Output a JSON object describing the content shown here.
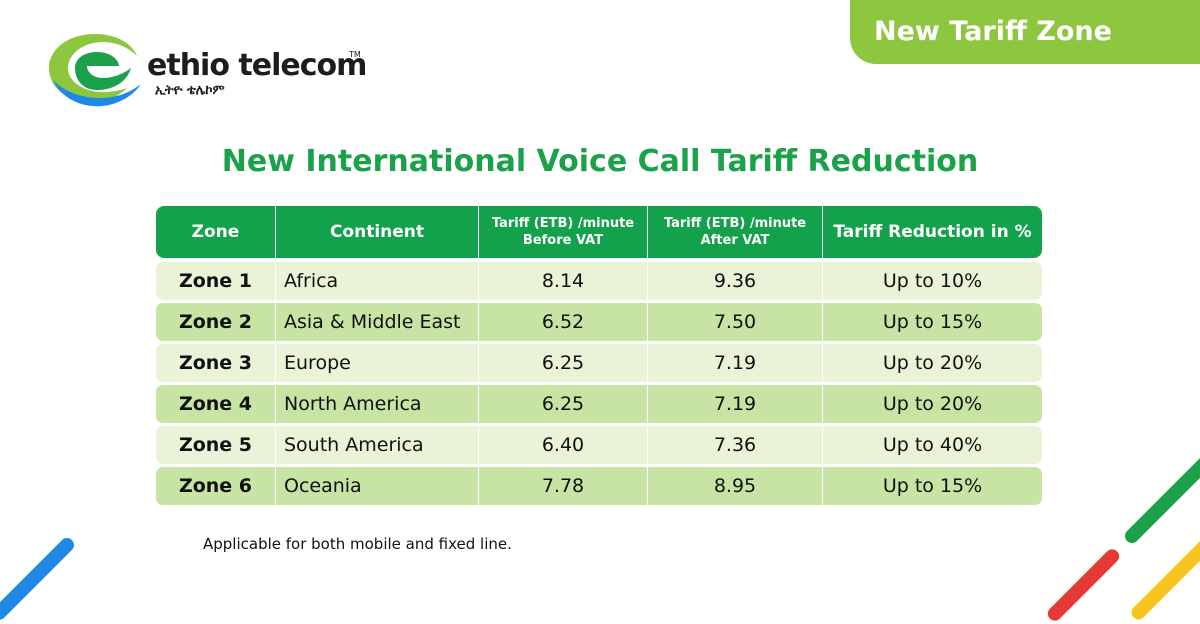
{
  "brand": {
    "name": "ethio telecom",
    "trademark": "TM",
    "name_amharic": "ኢትዮ ቴሌኮም",
    "colors": {
      "green": "#1aa14a",
      "light_green": "#8dc63f",
      "blue": "#1e88e5",
      "yellow": "#f7c51e",
      "red": "#e53935"
    }
  },
  "badge": {
    "label": "New Tariff Zone"
  },
  "title": "New International Voice Call Tariff Reduction",
  "table": {
    "headers": {
      "zone": "Zone",
      "continent": "Continent",
      "before_vat_line1": "Tariff (ETB) /minute",
      "before_vat_line2": "Before VAT",
      "after_vat_line1": "Tariff (ETB) /minute",
      "after_vat_line2": "After VAT",
      "reduction": "Tariff Reduction in %"
    },
    "rows": [
      {
        "zone": "Zone 1",
        "continent": "Africa",
        "before_vat": "8.14",
        "after_vat": "9.36",
        "reduction": "Up to 10%"
      },
      {
        "zone": "Zone 2",
        "continent": "Asia & Middle East",
        "before_vat": "6.52",
        "after_vat": "7.50",
        "reduction": "Up to 15%"
      },
      {
        "zone": "Zone 3",
        "continent": "Europe",
        "before_vat": "6.25",
        "after_vat": "7.19",
        "reduction": "Up to 20%"
      },
      {
        "zone": "Zone 4",
        "continent": "North America",
        "before_vat": "6.25",
        "after_vat": "7.19",
        "reduction": "Up to 20%"
      },
      {
        "zone": "Zone 5",
        "continent": "South America",
        "before_vat": "6.40",
        "after_vat": "7.36",
        "reduction": "Up to 40%"
      },
      {
        "zone": "Zone 6",
        "continent": "Oceania",
        "before_vat": "7.78",
        "after_vat": "8.95",
        "reduction": "Up to 15%"
      }
    ]
  },
  "note": "Applicable for both mobile and fixed line."
}
